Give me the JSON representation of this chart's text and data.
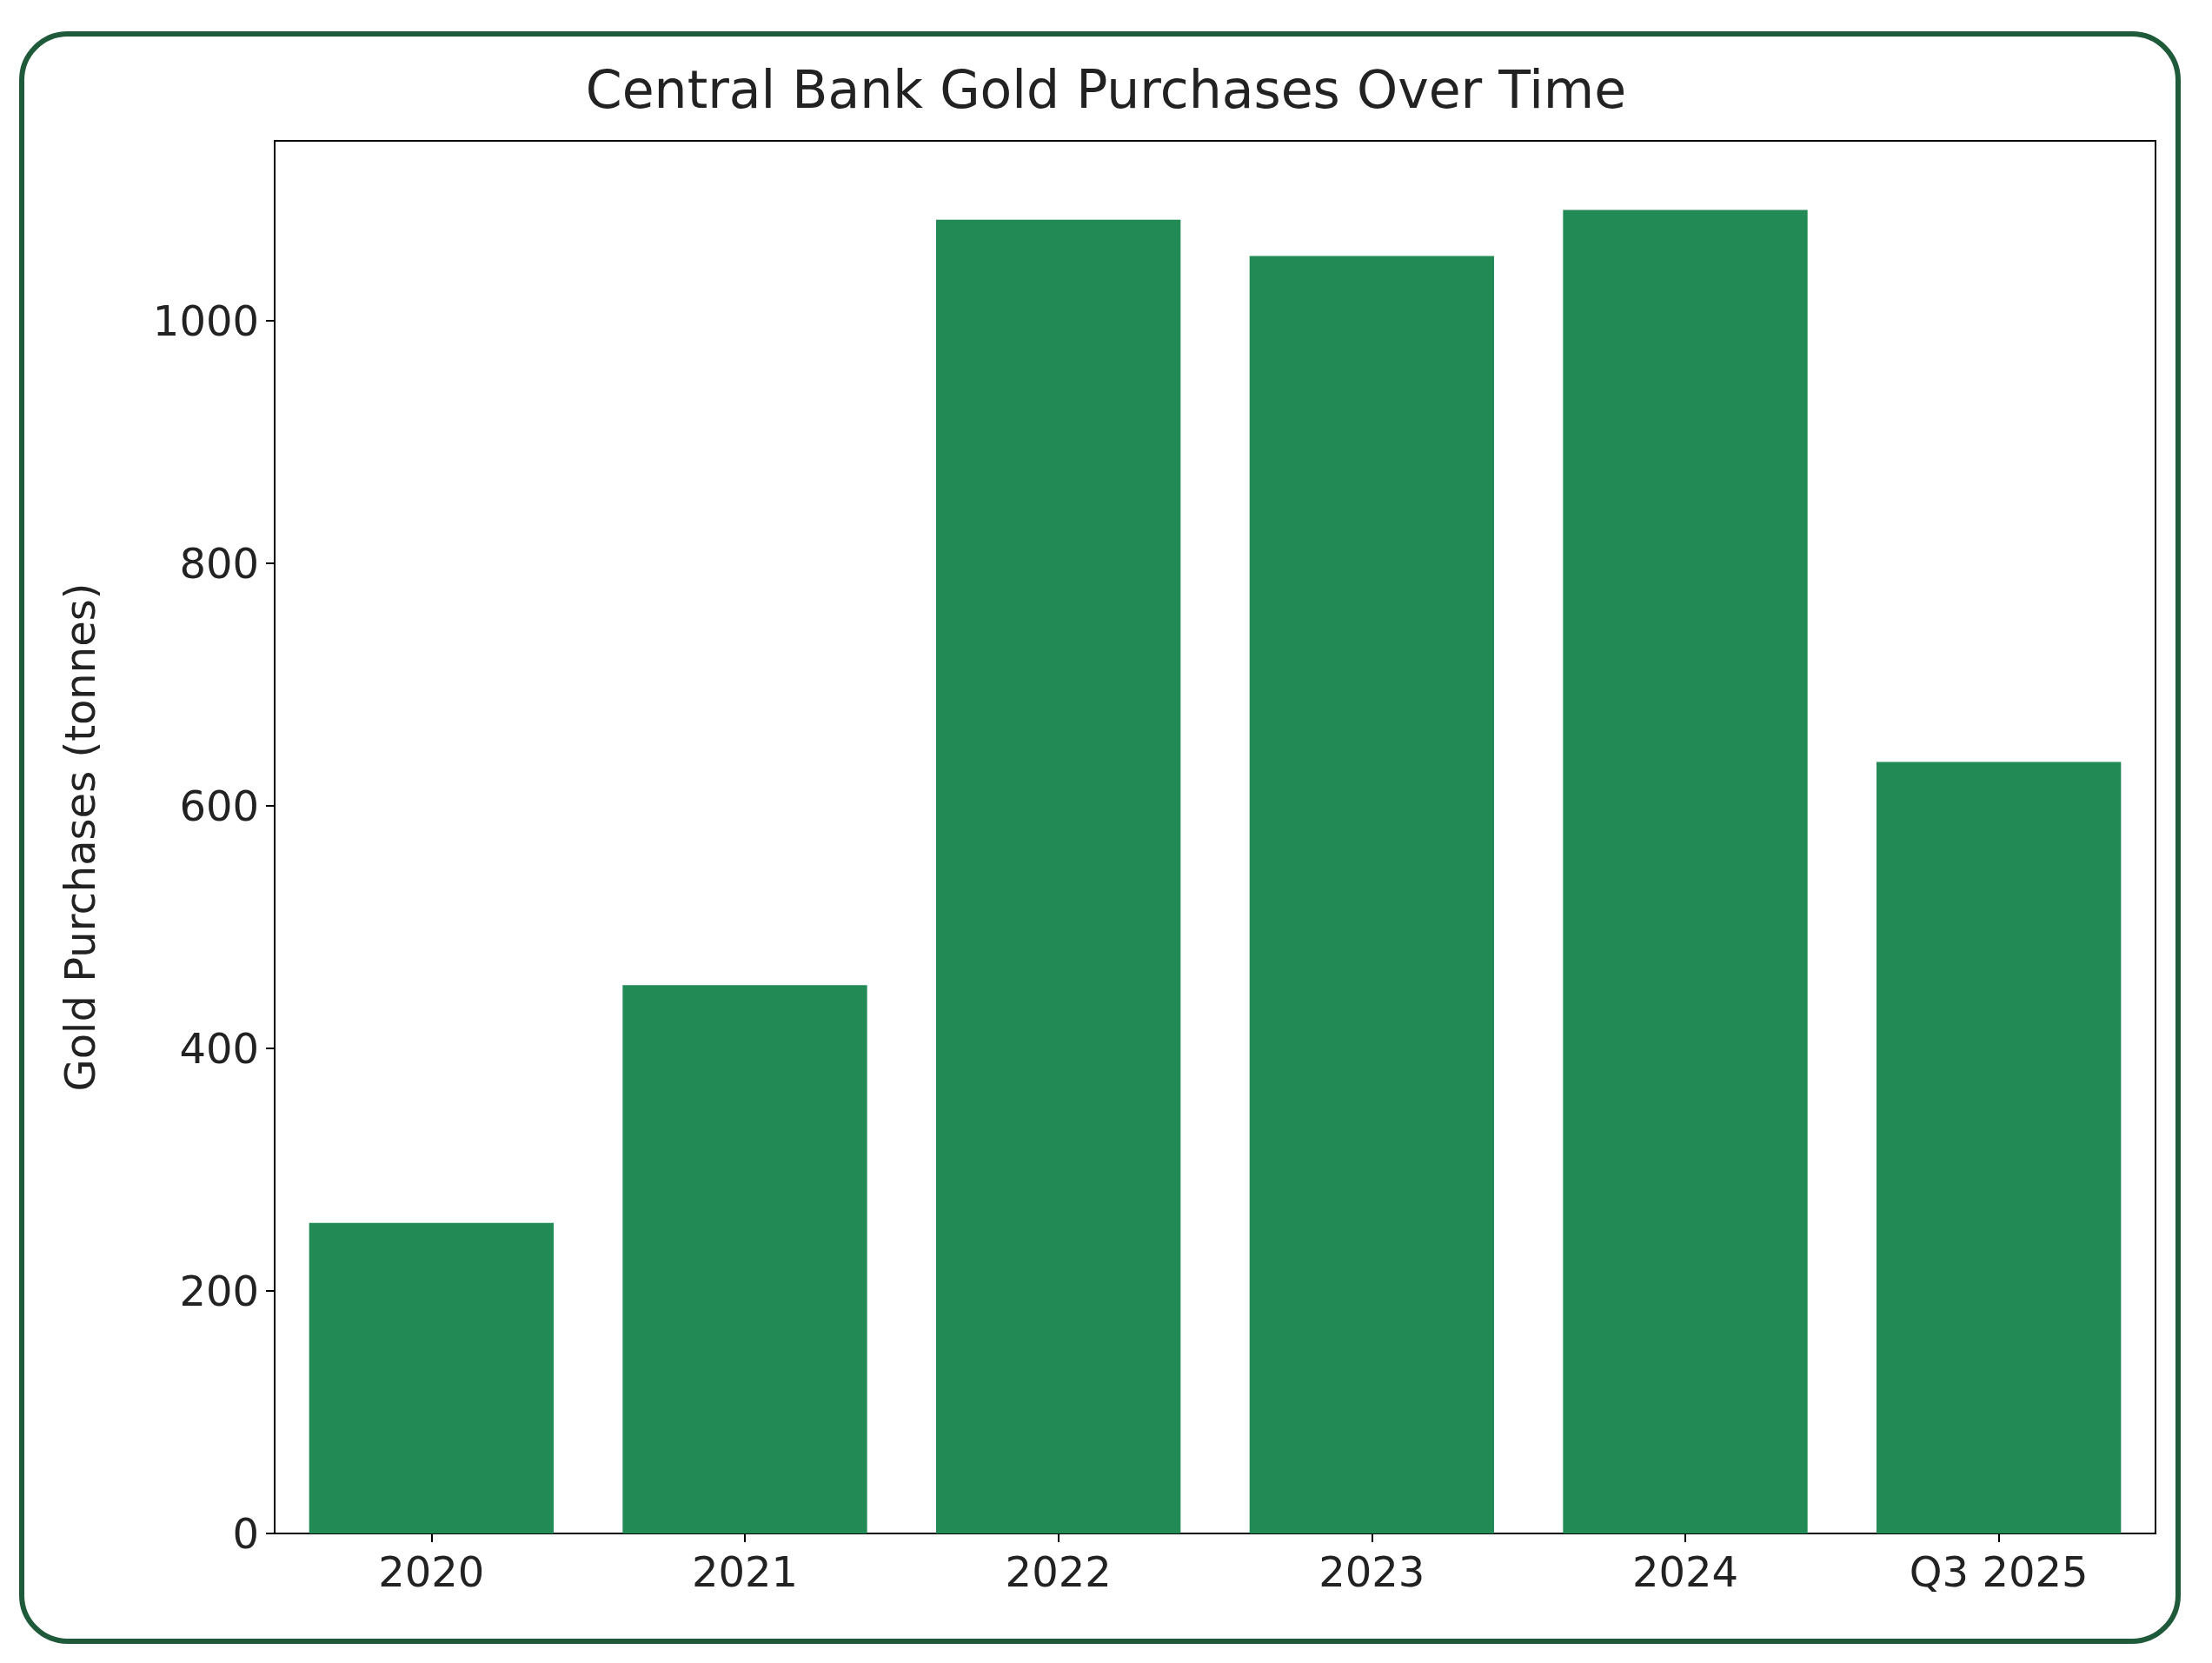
{
  "chart_data": {
    "type": "bar",
    "title": "Central Bank Gold Purchases Over Time",
    "ylabel": "Gold Purchases (tonnes)",
    "categories": [
      "2020",
      "2021",
      "2022",
      "2023",
      "2024",
      "Q3 2025"
    ],
    "values": [
      256,
      452,
      1083,
      1053,
      1091,
      636
    ],
    "color": "#218a55",
    "ylim": [
      0,
      1148
    ],
    "yticks": [
      0,
      200,
      400,
      600,
      800,
      1000
    ],
    "grid": false
  }
}
